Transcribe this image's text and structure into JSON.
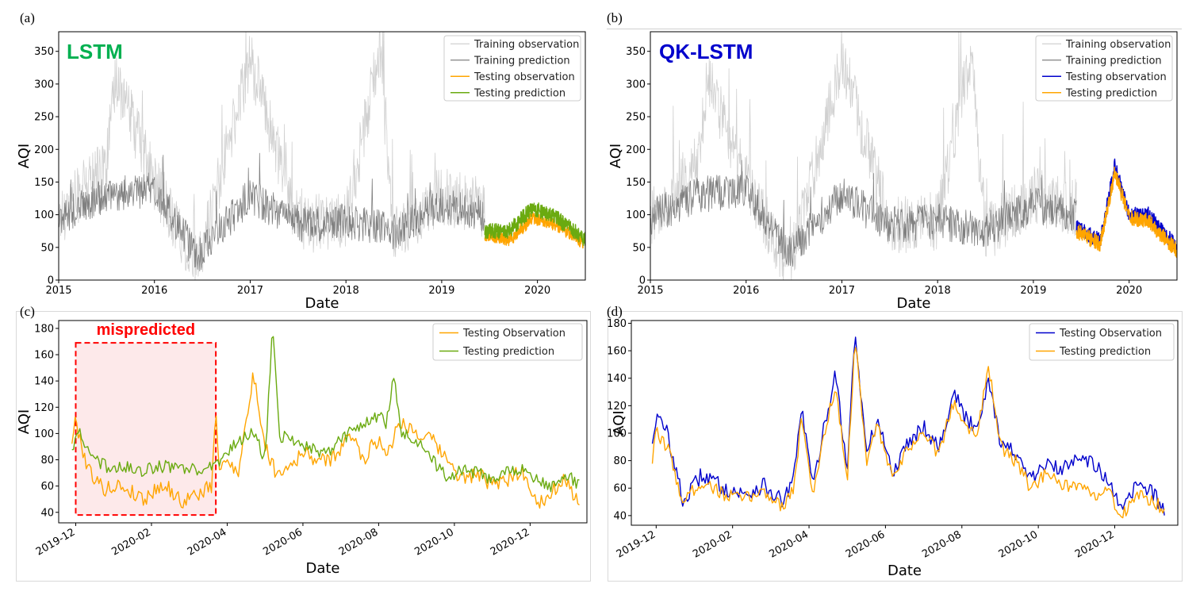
{
  "colors": {
    "train_obs": "#d0d0d0",
    "train_pred": "#808080",
    "orange": "#ffa500",
    "green": "#6aaa10",
    "blue": "#0000cc",
    "lstm_title": "#00b050",
    "qk_title": "#0000cc",
    "mispredicted": "#ff0000"
  },
  "chart_data": [
    {
      "panel": "(a)",
      "type": "line",
      "model_title": "LSTM",
      "xlabel": "Date",
      "ylabel": "AQI",
      "xlim": [
        2015.0,
        2020.5
      ],
      "ylim": [
        0,
        380
      ],
      "x_ticks": [
        2015,
        2016,
        2017,
        2018,
        2019,
        2020
      ],
      "y_ticks": [
        0,
        50,
        100,
        150,
        200,
        250,
        300,
        350
      ],
      "legend": [
        "Training observation",
        "Training prediction",
        "Testing observation",
        "Testing prediction"
      ],
      "series": [
        {
          "name": "Training observation",
          "style": "train_obs",
          "x": [
            2015.0,
            2015.5,
            2015.6,
            2016.0,
            2016.45,
            2017.0,
            2017.5,
            2018.0,
            2018.35,
            2018.5,
            2019.0,
            2019.45
          ],
          "values": [
            95,
            180,
            310,
            150,
            20,
            340,
            85,
            90,
            350,
            70,
            130,
            110
          ]
        },
        {
          "name": "Training prediction",
          "style": "train_pred",
          "x": [
            2015.0,
            2015.5,
            2016.0,
            2016.45,
            2017.0,
            2017.5,
            2018.0,
            2018.5,
            2019.0,
            2019.45
          ],
          "values": [
            95,
            130,
            140,
            35,
            130,
            85,
            90,
            75,
            115,
            100
          ]
        },
        {
          "name": "Testing observation",
          "style": "orange",
          "x": [
            2019.45,
            2019.7,
            2019.95,
            2020.2,
            2020.5
          ],
          "values": [
            70,
            60,
            95,
            85,
            55
          ]
        },
        {
          "name": "Testing prediction",
          "style": "green",
          "x": [
            2019.45,
            2019.7,
            2019.95,
            2020.2,
            2020.5
          ],
          "values": [
            75,
            75,
            110,
            95,
            62
          ]
        }
      ]
    },
    {
      "panel": "(b)",
      "type": "line",
      "model_title": "QK-LSTM",
      "xlabel": "Date",
      "ylabel": "AQI",
      "xlim": [
        2015.0,
        2020.5
      ],
      "ylim": [
        0,
        380
      ],
      "x_ticks": [
        2015,
        2016,
        2017,
        2018,
        2019,
        2020
      ],
      "y_ticks": [
        0,
        50,
        100,
        150,
        200,
        250,
        300,
        350
      ],
      "legend": [
        "Training observation",
        "Training prediction",
        "Testing observation",
        "Testing prediction"
      ],
      "series": [
        {
          "name": "Training observation",
          "style": "train_obs",
          "x": [
            2015.0,
            2015.5,
            2015.6,
            2016.0,
            2016.45,
            2017.0,
            2017.5,
            2018.0,
            2018.35,
            2018.5,
            2019.0,
            2019.45
          ],
          "values": [
            95,
            180,
            310,
            150,
            20,
            340,
            85,
            90,
            350,
            70,
            130,
            110
          ]
        },
        {
          "name": "Training prediction",
          "style": "train_pred",
          "x": [
            2015.0,
            2015.5,
            2016.0,
            2016.45,
            2017.0,
            2017.5,
            2018.0,
            2018.5,
            2019.0,
            2019.45
          ],
          "values": [
            95,
            130,
            140,
            40,
            130,
            85,
            90,
            75,
            115,
            100
          ]
        },
        {
          "name": "Testing observation",
          "style": "blue",
          "x": [
            2019.45,
            2019.7,
            2019.85,
            2020.0,
            2020.2,
            2020.5
          ],
          "values": [
            80,
            60,
            175,
            100,
            100,
            50
          ]
        },
        {
          "name": "Testing prediction",
          "style": "orange",
          "x": [
            2019.45,
            2019.7,
            2019.85,
            2020.0,
            2020.2,
            2020.5
          ],
          "values": [
            75,
            55,
            165,
            95,
            90,
            45
          ]
        }
      ]
    },
    {
      "panel": "(c)",
      "type": "line",
      "xlabel": "Date",
      "ylabel": "AQI",
      "x_unit": "months since 2019-11-01",
      "xlim": [
        0.55,
        14.5
      ],
      "ylim": [
        32,
        186
      ],
      "x_ticks": [
        1,
        3,
        5,
        7,
        9,
        11,
        13
      ],
      "x_tick_labels": [
        "2019-12",
        "2020-02",
        "2020-04",
        "2020-06",
        "2020-08",
        "2020-10",
        "2020-12"
      ],
      "y_ticks": [
        40,
        60,
        80,
        100,
        120,
        140,
        160,
        180
      ],
      "legend": [
        "Testing Observation",
        "Testing prediction"
      ],
      "annotation": {
        "label": "mispredicted",
        "x_range": [
          1.0,
          4.7
        ],
        "y_range": [
          38,
          169
        ]
      },
      "series": [
        {
          "name": "Testing Observation",
          "style": "orange",
          "x": [
            0.9,
            1.0,
            1.3,
            1.7,
            2.2,
            2.8,
            3.3,
            3.8,
            4.3,
            4.6,
            4.7,
            4.8,
            5.0,
            5.3,
            5.7,
            6.0,
            6.3,
            6.6,
            7.0,
            7.6,
            8.0,
            8.3,
            8.6,
            8.8,
            9.0,
            9.2,
            9.6,
            10.0,
            10.4,
            10.8,
            11.2,
            11.6,
            12.0,
            12.4,
            12.8,
            13.0,
            13.2,
            13.5,
            13.9,
            14.3
          ],
          "values": [
            95,
            110,
            75,
            58,
            60,
            50,
            62,
            48,
            55,
            60,
            120,
            70,
            80,
            72,
            145,
            90,
            70,
            75,
            85,
            78,
            88,
            100,
            80,
            90,
            95,
            85,
            110,
            100,
            95,
            80,
            65,
            70,
            60,
            65,
            72,
            60,
            45,
            55,
            65,
            45
          ]
        },
        {
          "name": "Testing prediction",
          "style": "green",
          "x": [
            0.9,
            1.1,
            1.4,
            1.8,
            2.3,
            2.8,
            3.3,
            3.8,
            4.3,
            4.6,
            4.8,
            5.0,
            5.3,
            5.7,
            6.0,
            6.2,
            6.4,
            6.6,
            7.0,
            7.6,
            8.0,
            8.4,
            8.8,
            9.0,
            9.2,
            9.4,
            9.6,
            10.0,
            10.4,
            10.8,
            11.2,
            11.6,
            12.0,
            12.4,
            12.8,
            13.2,
            13.6,
            14.0,
            14.3
          ],
          "values": [
            90,
            100,
            82,
            75,
            74,
            72,
            75,
            73,
            72,
            74,
            80,
            85,
            95,
            100,
            80,
            180,
            95,
            100,
            90,
            85,
            95,
            105,
            110,
            115,
            105,
            145,
            100,
            95,
            80,
            68,
            72,
            70,
            65,
            70,
            72,
            65,
            60,
            68,
            60
          ]
        }
      ]
    },
    {
      "panel": "(d)",
      "type": "line",
      "xlabel": "Date",
      "ylabel": "AQI",
      "x_unit": "months since 2019-11-01",
      "xlim": [
        0.35,
        14.65
      ],
      "ylim": [
        33,
        182
      ],
      "x_ticks": [
        1,
        3,
        5,
        7,
        9,
        11,
        13
      ],
      "x_tick_labels": [
        "2019-12",
        "2020-02",
        "2020-04",
        "2020-06",
        "2020-08",
        "2020-10",
        "2020-12"
      ],
      "y_ticks": [
        40,
        60,
        80,
        100,
        120,
        140,
        160,
        180
      ],
      "legend": [
        "Testing Observation",
        "Testing prediction"
      ],
      "series": [
        {
          "name": "Testing Observation",
          "style": "blue",
          "x": [
            0.9,
            1.0,
            1.3,
            1.7,
            2.2,
            2.8,
            3.3,
            3.8,
            4.3,
            4.6,
            4.8,
            5.1,
            5.4,
            5.7,
            6.0,
            6.2,
            6.5,
            6.8,
            7.2,
            7.6,
            8.0,
            8.4,
            8.8,
            9.1,
            9.4,
            9.7,
            10.0,
            10.4,
            10.8,
            11.2,
            11.6,
            12.0,
            12.4,
            12.8,
            13.2,
            13.6,
            14.0,
            14.3
          ],
          "values": [
            95,
            112,
            100,
            50,
            70,
            60,
            55,
            62,
            50,
            65,
            120,
            60,
            105,
            145,
            70,
            175,
            85,
            110,
            70,
            95,
            105,
            90,
            130,
            110,
            105,
            140,
            95,
            85,
            65,
            78,
            72,
            85,
            80,
            65,
            42,
            65,
            55,
            45
          ]
        },
        {
          "name": "Testing prediction",
          "style": "orange",
          "x": [
            0.9,
            1.0,
            1.3,
            1.7,
            2.2,
            2.8,
            3.3,
            3.8,
            4.3,
            4.6,
            4.8,
            5.1,
            5.4,
            5.7,
            6.0,
            6.2,
            6.5,
            6.8,
            7.2,
            7.6,
            8.0,
            8.4,
            8.8,
            9.1,
            9.4,
            9.7,
            10.0,
            10.4,
            10.8,
            11.2,
            11.6,
            12.0,
            12.4,
            12.8,
            13.2,
            13.6,
            14.0,
            14.3
          ],
          "values": [
            80,
            100,
            90,
            50,
            65,
            55,
            52,
            58,
            47,
            60,
            110,
            55,
            100,
            135,
            65,
            170,
            80,
            105,
            65,
            90,
            100,
            85,
            125,
            105,
            100,
            150,
            90,
            80,
            60,
            70,
            62,
            60,
            55,
            58,
            40,
            55,
            50,
            45
          ]
        }
      ]
    }
  ]
}
